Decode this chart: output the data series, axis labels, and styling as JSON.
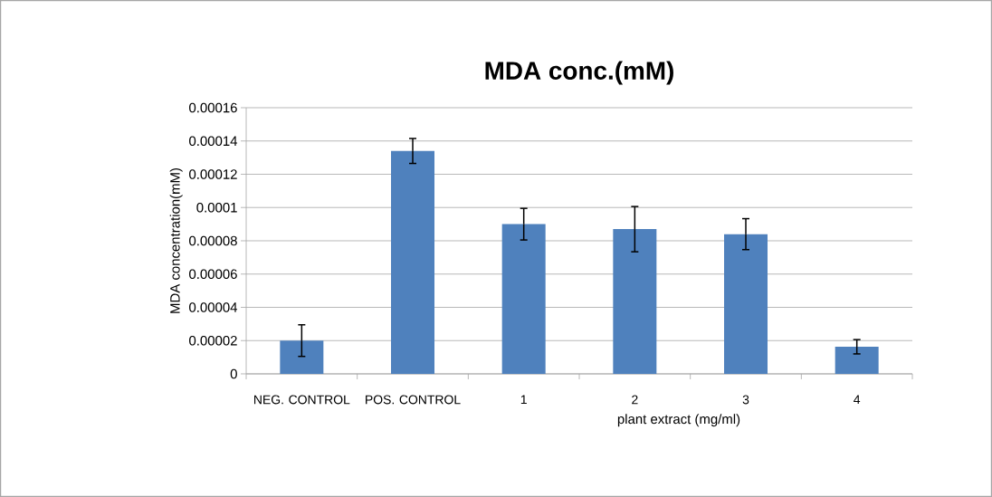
{
  "chart_data": {
    "type": "bar",
    "title": "MDA conc.(mM)",
    "xlabel": "plant  extract (mg/ml)",
    "ylabel": "MDA concentration(mM)",
    "categories": [
      "NEG. CONTROL",
      "POS. CONTROL",
      "1",
      "2",
      "3",
      "4"
    ],
    "values": [
      2e-05,
      0.000134,
      9e-05,
      8.7e-05,
      8.4e-05,
      1.63e-05
    ],
    "errors": [
      9.5e-06,
      7.5e-06,
      9.5e-06,
      1.36e-05,
      9.3e-06,
      4.3e-06
    ],
    "color": "#4f81bd",
    "ylim": [
      0,
      0.00016
    ],
    "yticks": [
      {
        "value": 0,
        "label": "0"
      },
      {
        "value": 2e-05,
        "label": "0.00002"
      },
      {
        "value": 4e-05,
        "label": "0.00004"
      },
      {
        "value": 6e-05,
        "label": "0.00006"
      },
      {
        "value": 8e-05,
        "label": "0.00008"
      },
      {
        "value": 0.0001,
        "label": "0.0001"
      },
      {
        "value": 0.00012,
        "label": "0.00012"
      },
      {
        "value": 0.00014,
        "label": "0.00014"
      },
      {
        "value": 0.00016,
        "label": "0.00016"
      }
    ],
    "grid": "y"
  }
}
